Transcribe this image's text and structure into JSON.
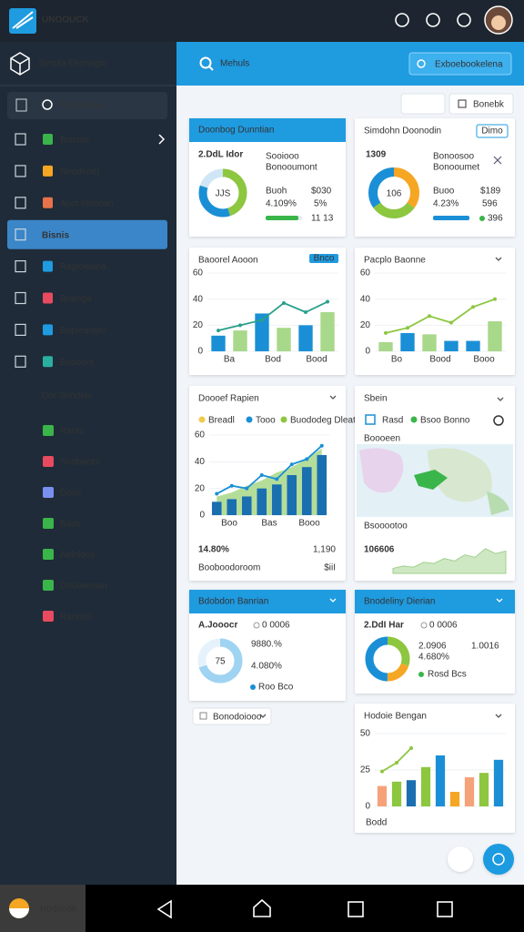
{
  "topbar": {
    "logo": "UNOOUCK"
  },
  "sidebar": {
    "title": "Simula Ekonngni",
    "search": "Rooonohia",
    "active": 3,
    "items": [
      "Bisnias",
      "Nnodenel",
      "Anct Idnodan",
      "Bisnis",
      "Ragionlana",
      "Broinga",
      "Bopleangei",
      "Bnooont"
    ],
    "section": "Dor Snndolx",
    "section_items": [
      "Rants",
      "Sonbacks",
      "Doos",
      "Bads",
      "Aelnlohs",
      "Doolaernan",
      "Rannns"
    ]
  },
  "header": {
    "search": "Mehuls",
    "button": "Exboebookelena",
    "filter": "Bonebk"
  },
  "cards": [
    {
      "title": "Doonbog Dunntian",
      "heading": "2.DdL Idor",
      "center": "JJS",
      "donut": [
        45,
        35,
        20
      ],
      "colors": [
        "#8dc63f",
        "#1a8fd6",
        "#cfe6f6"
      ],
      "texts": [
        "Sooiooo",
        "Bonooumont",
        "Buoh",
        "$030",
        "4.109%",
        "5%",
        "11 13"
      ]
    },
    {
      "title": "Simdohn Doonodin",
      "badge": "Dimo",
      "heading": "1309",
      "center": "106",
      "donut": [
        35,
        30,
        35
      ],
      "colors": [
        "#f5a623",
        "#8dc63f",
        "#1a8fd6"
      ],
      "texts": [
        "Bonoosoo",
        "Bonooumet",
        "Buoo",
        "$189",
        "4.23%",
        "596",
        "396"
      ]
    },
    {
      "title": "Baoorel Aooon",
      "badge": "Bnco",
      "ylim": [
        0,
        60
      ],
      "yticks": [
        0,
        20,
        40,
        60
      ],
      "xlabels": [
        "Ba",
        "Bod",
        "Bood"
      ],
      "bars": [
        12,
        16,
        29,
        18,
        20,
        30
      ],
      "bar_colors": [
        "#1a8fd6",
        "#a8d88a",
        "#1a8fd6",
        "#a8d88a",
        "#1a8fd6",
        "#a8d88a"
      ],
      "line": [
        16,
        20,
        24,
        37,
        30,
        38
      ],
      "line_color": "#2aa08a"
    },
    {
      "title": "Pacplo Baonne",
      "ylim": [
        0,
        60
      ],
      "yticks": [
        0,
        20,
        40,
        60
      ],
      "xlabels": [
        "Bo",
        "Bood",
        "Booo"
      ],
      "bars": [
        7,
        14,
        13,
        8,
        8,
        23
      ],
      "bar_colors": [
        "#a8d88a",
        "#1a8fd6",
        "#a8d88a",
        "#1a8fd6",
        "#1a8fd6",
        "#a8d88a"
      ],
      "line": [
        14,
        18,
        27,
        22,
        34,
        40
      ],
      "line_color": "#8dc63f"
    },
    {
      "title": "Doooef Rapien",
      "legend": [
        "Breadl",
        "Tooo",
        "Buododeg Dleatan"
      ],
      "legend_colors": [
        "#f2c94c",
        "#1a8fd6",
        "#8dc63f"
      ],
      "ylim": [
        0,
        60
      ],
      "yticks": [
        0,
        20,
        40,
        60
      ],
      "xlabels": [
        "Boo",
        "Bas",
        "Booo"
      ],
      "bars": [
        10,
        12,
        14,
        20,
        23,
        30,
        36,
        45
      ],
      "bar_color": "#1a6fb0",
      "area": [
        14,
        17,
        22,
        26,
        32,
        36,
        42,
        50
      ],
      "area_color": "#b5dd9a",
      "line": [
        16,
        22,
        20,
        30,
        27,
        38,
        42,
        52
      ],
      "line_color": "#1a8fd6",
      "big": "14.80%",
      "value": "1,190",
      "foot": "Booboodoroom",
      "foot_value": "$iiI"
    },
    {
      "title": "Sbein",
      "legend": [
        "Rasd",
        "Bsoo Bonno"
      ],
      "legend_colors": [
        "#1a8fd6",
        "#3ab54a"
      ],
      "map_top": "Boooeen",
      "map_bottom": "Bsooootoo",
      "big": "106606",
      "spark": [
        4,
        6,
        5,
        9,
        8,
        12,
        10,
        15,
        13,
        20,
        16,
        18
      ],
      "spark_ylim": [
        0,
        25
      ]
    },
    {
      "title": "Bdobdon Banrian",
      "heading": "A.Jooocr",
      "sub": "0 0006",
      "center": "75",
      "donut": [
        70,
        30
      ],
      "colors": [
        "#9fd3f2",
        "#e6f2fb"
      ],
      "texts": [
        "9880.%",
        "4.080%",
        "Roo Bco"
      ],
      "dropdown": "Bonodoiooo"
    },
    {
      "title": "Bnodeliny Dierian",
      "heading": "2.DdI Har",
      "sub": "0 0006",
      "donut": [
        30,
        20,
        50
      ],
      "colors": [
        "#8dc63f",
        "#f5a623",
        "#1a8fd6"
      ],
      "texts": [
        "2.0906",
        "4.680%",
        "1.0016",
        "Rosd Bcs"
      ]
    },
    {
      "title": "Hodoie Bengan",
      "ylim": [
        0,
        50
      ],
      "yticks": [
        0,
        25,
        50
      ],
      "bars": [
        14,
        17,
        18,
        27,
        35,
        10,
        20,
        23,
        32
      ],
      "bar_colors": [
        "#f5a27a",
        "#8dc63f",
        "#1a6fb0",
        "#8dc63f",
        "#1a8fd6",
        "#f5a623",
        "#f5a27a",
        "#8dc63f",
        "#1a8fd6"
      ],
      "line": [
        24,
        30,
        40,
        null,
        null,
        null,
        null,
        null,
        null
      ],
      "line_color": "#8dc63f",
      "foot": "Bodd"
    }
  ],
  "footer": {
    "app": "Hodoodk"
  }
}
